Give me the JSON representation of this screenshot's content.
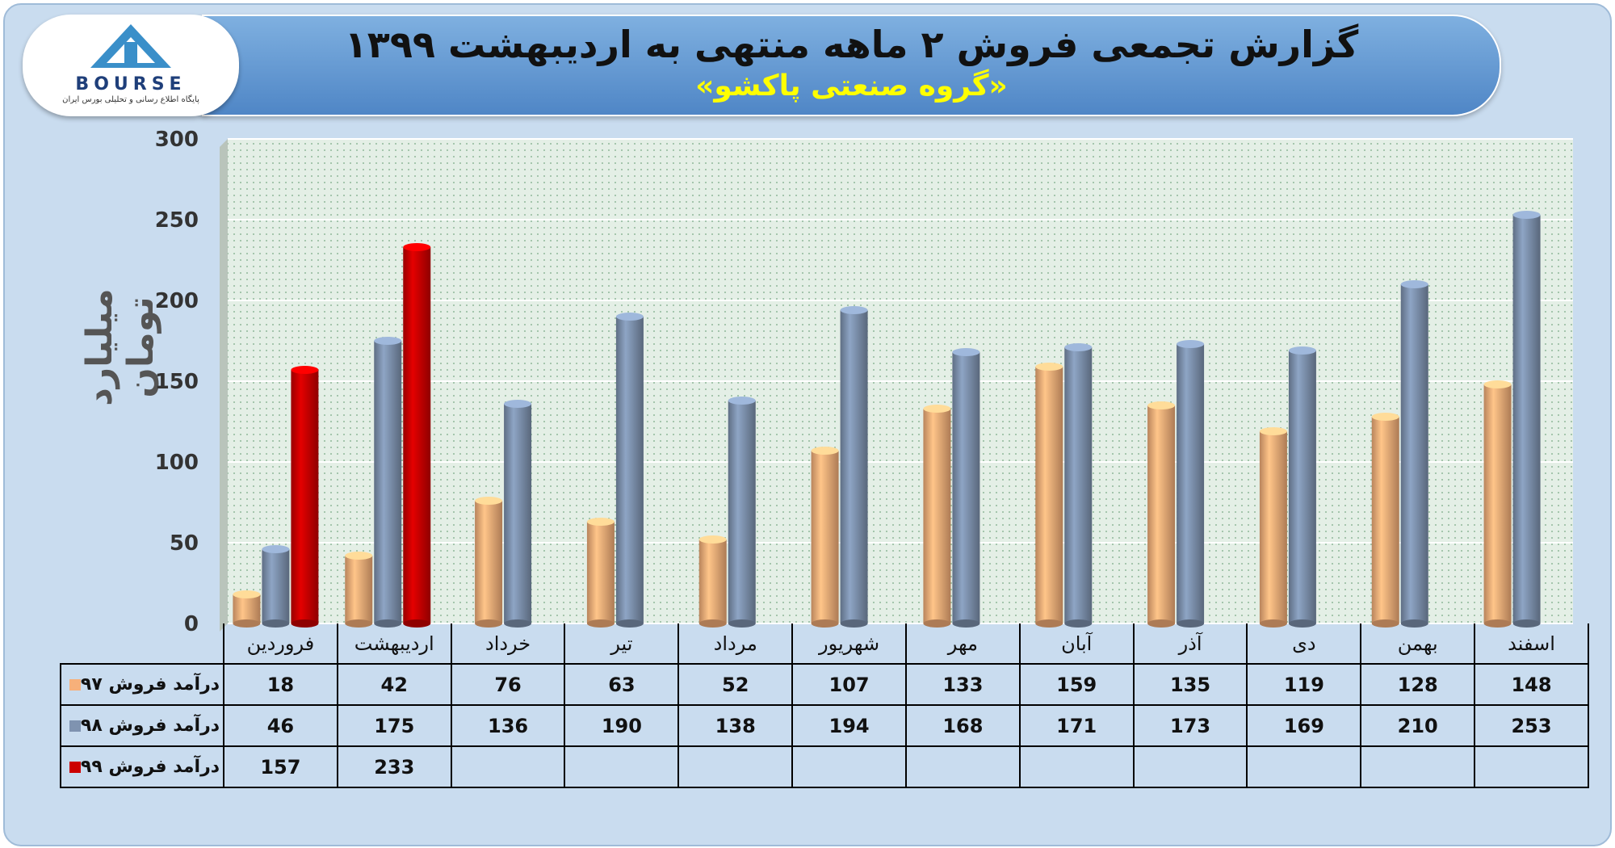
{
  "title": "گزارش تجمعی فروش ۲ ماهه منتهی به اردیبهشت ۱۳۹۹",
  "subtitle": "«گروه صنعتی پاکشو»",
  "logo": {
    "text": "BOURSE",
    "tagline": "پایگاه اطلاع رسانی و تحلیلی بورس ایران"
  },
  "colors": {
    "series97": "#f7b07a",
    "series98": "#7f93b0",
    "series99": "#cc0000"
  },
  "chart_data": {
    "type": "bar",
    "title": "گزارش تجمعی فروش ۲ ماهه منتهی به اردیبهشت ۱۳۹۹",
    "subtitle": "«گروه صنعتی پاکشو»",
    "ylabel": "میلیارد تومان",
    "xlabel": "",
    "ylim": [
      0,
      300
    ],
    "yticks": [
      "0",
      "50",
      "100",
      "150",
      "200",
      "250",
      "300"
    ],
    "grid": true,
    "categories": [
      "فروردین",
      "اردیبهشت",
      "خرداد",
      "تیر",
      "مرداد",
      "شهریور",
      "مهر",
      "آبان",
      "آذر",
      "دی",
      "بهمن",
      "اسفند"
    ],
    "series": [
      {
        "name": "درآمد فروش ۹۷",
        "values": [
          18,
          42,
          76,
          63,
          52,
          107,
          133,
          159,
          135,
          119,
          128,
          148
        ]
      },
      {
        "name": "درآمد فروش ۹۸",
        "values": [
          46,
          175,
          136,
          190,
          138,
          194,
          168,
          171,
          173,
          169,
          210,
          253
        ]
      },
      {
        "name": "درآمد فروش ۹۹",
        "values": [
          157,
          233,
          null,
          null,
          null,
          null,
          null,
          null,
          null,
          null,
          null,
          null
        ]
      }
    ],
    "value_labels": [
      [
        "18",
        "42",
        "76",
        "63",
        "52",
        "107",
        "133",
        "159",
        "135",
        "119",
        "128",
        "148"
      ],
      [
        "46",
        "175",
        "136",
        "190",
        "138",
        "194",
        "168",
        "171",
        "173",
        "169",
        "210",
        "253"
      ],
      [
        "157",
        "233",
        "",
        "",
        "",
        "",
        "",
        "",
        "",
        "",
        "",
        ""
      ]
    ]
  }
}
